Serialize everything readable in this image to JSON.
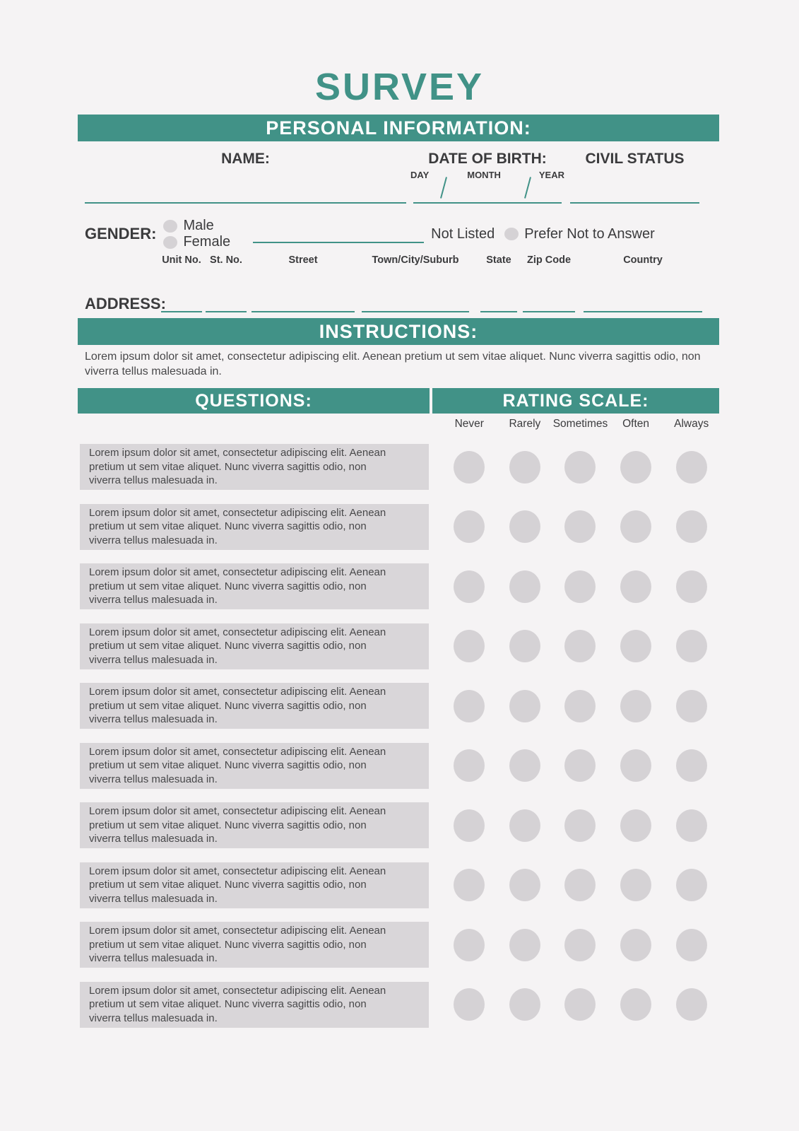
{
  "colors": {
    "accent": "#419287",
    "bg": "#f5f3f4",
    "box-gray": "#d9d6d9",
    "circle-gray": "#d5d2d5",
    "dark": "#3b3b3d",
    "body-text": "#48484a"
  },
  "title": "SURVEY",
  "personal": {
    "header": "PERSONAL INFORMATION:",
    "fields": {
      "name_label": "NAME:",
      "dob_label": "DATE OF BIRTH:",
      "dob_parts": [
        "DAY",
        "MONTH",
        "YEAR"
      ],
      "civil_status_label": "CIVIL STATUS"
    },
    "gender": {
      "label": "GENDER:",
      "options": [
        "Male",
        "Female"
      ],
      "not_listed_label": "Not Listed",
      "prefer_label": "Prefer Not to Answer"
    },
    "address": {
      "label": "ADDRESS:",
      "fields": [
        "Unit No.",
        "St. No.",
        "Street",
        "Town/City/Suburb",
        "State",
        "Zip Code",
        "Country"
      ]
    }
  },
  "instructions": {
    "header": "INSTRUCTIONS:",
    "body": "Lorem ipsum dolor sit amet, consectetur adipiscing elit. Aenean pretium ut sem vitae aliquet. Nunc viverra sagittis odio, non viverra tellus malesuada in."
  },
  "survey_table": {
    "questions_header": "QUESTIONS:",
    "rating_header": "RATING SCALE:",
    "scale": [
      "Never",
      "Rarely",
      "Sometimes",
      "Often",
      "Always"
    ],
    "questions": [
      "Lorem ipsum dolor sit amet, consectetur adipiscing elit. Aenean pretium ut sem vitae aliquet. Nunc viverra sagittis odio, non viverra tellus malesuada in.",
      "Lorem ipsum dolor sit amet, consectetur adipiscing elit. Aenean pretium ut sem vitae aliquet. Nunc viverra sagittis odio, non viverra tellus malesuada in.",
      "Lorem ipsum dolor sit amet, consectetur adipiscing elit. Aenean pretium ut sem vitae aliquet. Nunc viverra sagittis odio, non viverra tellus malesuada in.",
      "Lorem ipsum dolor sit amet, consectetur adipiscing elit. Aenean pretium ut sem vitae aliquet. Nunc viverra sagittis odio, non viverra tellus malesuada in.",
      "Lorem ipsum dolor sit amet, consectetur adipiscing elit. Aenean pretium ut sem vitae aliquet. Nunc viverra sagittis odio, non viverra tellus malesuada in.",
      "Lorem ipsum dolor sit amet, consectetur adipiscing elit. Aenean pretium ut sem vitae aliquet. Nunc viverra sagittis odio, non viverra tellus malesuada in.",
      "Lorem ipsum dolor sit amet, consectetur adipiscing elit. Aenean pretium ut sem vitae aliquet. Nunc viverra sagittis odio, non viverra tellus malesuada in.",
      "Lorem ipsum dolor sit amet, consectetur adipiscing elit. Aenean pretium ut sem vitae aliquet. Nunc viverra sagittis odio, non viverra tellus malesuada in.",
      "Lorem ipsum dolor sit amet, consectetur adipiscing elit. Aenean pretium ut sem vitae aliquet. Nunc viverra sagittis odio, non viverra tellus malesuada in.",
      "Lorem ipsum dolor sit amet, consectetur adipiscing elit. Aenean pretium ut sem vitae aliquet. Nunc viverra sagittis odio, non viverra tellus malesuada in."
    ]
  }
}
